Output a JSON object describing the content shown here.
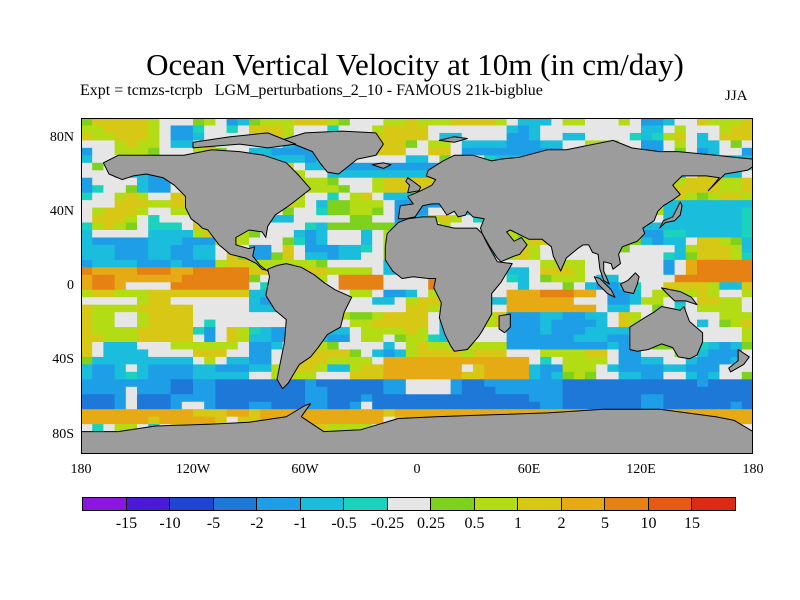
{
  "title": "Ocean Vertical Velocity at 10m (in cm/day)",
  "subtitle": "Expt = tcmzs-tcrpb   LGM_perturbations_2_10 - FAMOUS 21k-bigblue",
  "season": "JJA",
  "axes": {
    "y_ticks": [
      {
        "label": "80N",
        "lat": 80
      },
      {
        "label": "40N",
        "lat": 40
      },
      {
        "label": "0",
        "lat": 0
      },
      {
        "label": "40S",
        "lat": -40
      },
      {
        "label": "80S",
        "lat": -80
      }
    ],
    "x_ticks": [
      {
        "label": "180",
        "lon": -180
      },
      {
        "label": "120W",
        "lon": -120
      },
      {
        "label": "60W",
        "lon": -60
      },
      {
        "label": "0",
        "lon": 0
      },
      {
        "label": "60E",
        "lon": 60
      },
      {
        "label": "120E",
        "lon": 120
      },
      {
        "label": "180",
        "lon": 180
      }
    ],
    "lon_range": [
      -180,
      180
    ],
    "lat_range": [
      -90,
      90
    ]
  },
  "colorbar": {
    "colors": [
      "#8a16e0",
      "#4a1ad8",
      "#1e46d2",
      "#1e78d8",
      "#1e9ee6",
      "#1abedc",
      "#1ad2be",
      "#e6e6e6",
      "#7ed21e",
      "#b4dc14",
      "#d6c814",
      "#e6aa14",
      "#e68214",
      "#e65a14",
      "#dc2a14"
    ],
    "labels": [
      "-15",
      "-10",
      "-5",
      "-2",
      "-1",
      "-0.5",
      "-0.25",
      "0.25",
      "0.5",
      "1",
      "2",
      "5",
      "10",
      "15"
    ]
  },
  "colors": {
    "land": "#9c9c9c",
    "coastline": "#000000",
    "background": "#ffffff"
  },
  "chart_data": {
    "type": "heatmap",
    "title": "Ocean Vertical Velocity at 10m (in cm/day)",
    "units": "cm/day",
    "variable": "Ocean Vertical Velocity at 10m",
    "season": "JJA",
    "projection": "cylindrical equidistant",
    "xlim": [
      -180,
      180
    ],
    "ylim": [
      -90,
      90
    ],
    "contour_levels": [
      -15,
      -10,
      -5,
      -2,
      -1,
      -0.5,
      -0.25,
      0.25,
      0.5,
      1,
      2,
      5,
      10,
      15
    ],
    "approx_field": [
      {
        "lon": [
          140,
          180
        ],
        "lat": [
          2,
          12
        ],
        "value": 5
      },
      {
        "lon": [
          -180,
          -90
        ],
        "lat": [
          0,
          8
        ],
        "value": 5
      },
      {
        "lon": [
          -180,
          -90
        ],
        "lat": [
          -5,
          0
        ],
        "value": 1
      },
      {
        "lon": [
          -180,
          -110
        ],
        "lat": [
          10,
          25
        ],
        "value": -1
      },
      {
        "lon": [
          -180,
          -120
        ],
        "lat": [
          -30,
          -10
        ],
        "value": 1
      },
      {
        "lon": [
          -40,
          10
        ],
        "lat": [
          -2,
          6
        ],
        "value": 5
      },
      {
        "lon": [
          50,
          100
        ],
        "lat": [
          -12,
          -2
        ],
        "value": 5
      },
      {
        "lon": [
          50,
          100
        ],
        "lat": [
          -35,
          -15
        ],
        "value": -1
      },
      {
        "lon": [
          -180,
          180
        ],
        "lat": [
          -65,
          -50
        ],
        "value": -2
      },
      {
        "lon": [
          -20,
          60
        ],
        "lat": [
          -50,
          -40
        ],
        "value": 2
      },
      {
        "lon": [
          -50,
          -10
        ],
        "lat": [
          30,
          45
        ],
        "value": 0.5
      },
      {
        "lon": [
          130,
          180
        ],
        "lat": [
          25,
          45
        ],
        "value": -0.5
      },
      {
        "lon": [
          -180,
          180
        ],
        "lat": [
          -75,
          -65
        ],
        "value": 2
      }
    ]
  }
}
